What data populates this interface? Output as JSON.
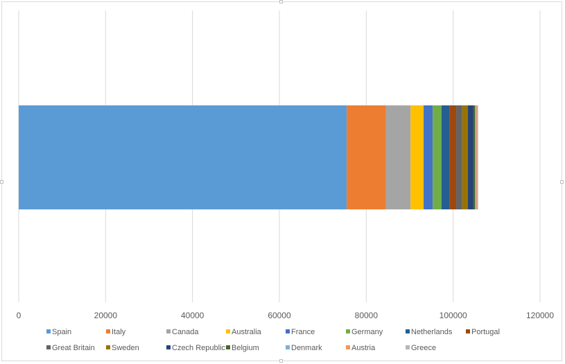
{
  "chart_data": {
    "type": "bar",
    "orientation": "horizontal",
    "stacked": true,
    "categories": [
      ""
    ],
    "xlim": [
      0,
      120000
    ],
    "xticks": [
      "0",
      "20000",
      "40000",
      "60000",
      "80000",
      "100000",
      "120000"
    ],
    "grid": "vertical",
    "legend_position": "bottom",
    "series": [
      {
        "name": "Spain",
        "values": [
          75500
        ],
        "color": "#5B9BD5"
      },
      {
        "name": "Italy",
        "values": [
          9000
        ],
        "color": "#ED7D31"
      },
      {
        "name": "Canada",
        "values": [
          5700
        ],
        "color": "#A5A5A5"
      },
      {
        "name": "Australia",
        "values": [
          3000
        ],
        "color": "#FFC000"
      },
      {
        "name": "France",
        "values": [
          2100
        ],
        "color": "#4472C4"
      },
      {
        "name": "Germany",
        "values": [
          2000
        ],
        "color": "#70AD47"
      },
      {
        "name": "Netherlands",
        "values": [
          1900
        ],
        "color": "#255E91"
      },
      {
        "name": "Portugal",
        "values": [
          1500
        ],
        "color": "#9E480E"
      },
      {
        "name": "Great Britain",
        "values": [
          1400
        ],
        "color": "#636363"
      },
      {
        "name": "Sweden",
        "values": [
          1300
        ],
        "color": "#997300"
      },
      {
        "name": "Czech Republic",
        "values": [
          1200
        ],
        "color": "#264478"
      },
      {
        "name": "Belgium",
        "values": [
          400
        ],
        "color": "#43682B"
      },
      {
        "name": "Denmark",
        "values": [
          300
        ],
        "color": "#7CAFDD"
      },
      {
        "name": "Austria",
        "values": [
          250
        ],
        "color": "#F1975A"
      },
      {
        "name": "Greece",
        "values": [
          200
        ],
        "color": "#B7B7B7"
      }
    ]
  }
}
